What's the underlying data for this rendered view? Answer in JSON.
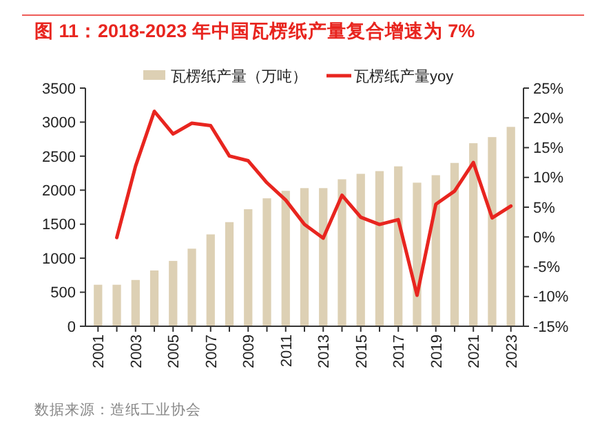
{
  "chart_data": {
    "type": "bar",
    "title": "图 11：2018-2023 年中国瓦楞纸产量复合增速为 7%",
    "categories": [
      "2001",
      null,
      "2003",
      null,
      "2005",
      null,
      "2007",
      null,
      "2009",
      null,
      "2011",
      null,
      "2013",
      null,
      "2015",
      null,
      "2017",
      null,
      "2019",
      null,
      "2021",
      null,
      "2023"
    ],
    "series": [
      {
        "name": "瓦楞纸产量（万吨）",
        "color": "#ddd0b4",
        "values": [
          610,
          610,
          680,
          820,
          960,
          1140,
          1350,
          1530,
          1720,
          1880,
          1990,
          2030,
          2030,
          2160,
          2240,
          2280,
          2350,
          2110,
          2220,
          2400,
          2690,
          2780,
          2930
        ]
      },
      {
        "name": "瓦楞纸产量yoy",
        "type": "line",
        "axis": "y2",
        "color": "#e8251f",
        "values": [
          null,
          -0.1,
          11.9,
          21.1,
          17.3,
          19.1,
          18.7,
          13.6,
          12.8,
          9.1,
          6.2,
          2.1,
          -0.2,
          7.0,
          3.3,
          2.1,
          2.9,
          -9.8,
          5.5,
          7.7,
          12.5,
          3.2,
          5.2
        ]
      }
    ],
    "ylim": [
      0,
      3500
    ],
    "yticks": [
      0,
      500,
      1000,
      1500,
      2000,
      2500,
      3000,
      3500
    ],
    "y2lim": [
      -15,
      25
    ],
    "y2ticks": [
      {
        "value": -15,
        "label": "-15%"
      },
      {
        "value": -10,
        "label": "-10%"
      },
      {
        "value": -5,
        "label": "-5%"
      },
      {
        "value": 0,
        "label": "0%"
      },
      {
        "value": 5,
        "label": "5%"
      },
      {
        "value": 10,
        "label": "10%"
      },
      {
        "value": 15,
        "label": "15%"
      },
      {
        "value": 20,
        "label": "20%"
      },
      {
        "value": 25,
        "label": "25%"
      }
    ],
    "grid": false,
    "legend": "top",
    "line_style": "solid",
    "marker": "none",
    "annotations": [
      "数据来源：造纸工业协会"
    ]
  }
}
